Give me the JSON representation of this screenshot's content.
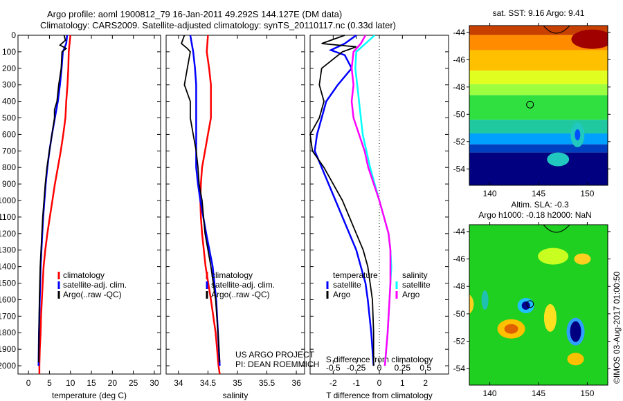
{
  "title_line1": "Argo profile: aoml 1900812_79 16-Jan-2011 49.292S 144.127E (DM data)",
  "title_line2": "Climatology: CARS2009. Satellite-adjusted climatology: synTS_20110117.nc (0.33d later)",
  "credit": "US ARGO PROJECT",
  "pi": "PI: DEAN ROEMMICH",
  "timestamp": "©IMOS 03-Aug-2017 01:00:50",
  "colors": {
    "climatology": "#ff0000",
    "satellite": "#0000ff",
    "argo": "#000000",
    "sal_satellite": "#00ffff",
    "sal_argo": "#ff00ff"
  },
  "chart_data": [
    {
      "type": "line",
      "id": "temperature",
      "xlabel": "temperature (deg C)",
      "xlim": [
        -2.5,
        31.5
      ],
      "ylim": [
        2050,
        0
      ],
      "xticks": [
        0,
        5,
        10,
        15,
        20,
        25,
        30
      ],
      "xticklabels": [
        "0",
        "5",
        "10",
        "15",
        "20",
        "25",
        "30"
      ],
      "yticks": [
        0,
        100,
        200,
        300,
        400,
        500,
        600,
        700,
        800,
        900,
        1000,
        1100,
        1200,
        1300,
        1400,
        1500,
        1600,
        1700,
        1800,
        1900,
        2000
      ],
      "legend": [
        "climatology",
        "satellite-adj. clim.",
        "Argo(..raw -QC)"
      ],
      "series": [
        {
          "name": "climatology",
          "color": "#ff0000",
          "depth": [
            0,
            50,
            100,
            200,
            300,
            400,
            500,
            600,
            700,
            800,
            900,
            1000,
            1100,
            1200,
            1300,
            1400,
            1500,
            1600,
            1700,
            1800,
            1900,
            2000,
            2050
          ],
          "values": [
            10,
            9.8,
            9.6,
            9.5,
            9.3,
            9.0,
            8.8,
            8.3,
            7.7,
            7.0,
            6.3,
            5.7,
            5.1,
            4.5,
            4.0,
            3.6,
            3.4,
            3.2,
            3.0,
            2.9,
            2.7,
            2.6,
            2.6
          ]
        },
        {
          "name": "satellite-adj. clim.",
          "color": "#0000ff",
          "depth": [
            0,
            50,
            100,
            200,
            300,
            400,
            500,
            600,
            700,
            800,
            900,
            1000,
            1100,
            1200,
            1300,
            1400,
            1600,
            1800,
            2000
          ],
          "values": [
            9.2,
            9.0,
            8.2,
            7.9,
            7.5,
            7.0,
            6.3,
            5.6,
            5.0,
            4.5,
            4.1,
            3.8,
            3.5,
            3.3,
            3.1,
            2.9,
            2.7,
            2.5,
            2.4
          ]
        },
        {
          "name": "Argo(..raw -QC)",
          "color": "#000000",
          "depth": [
            0,
            30,
            60,
            80,
            100,
            200,
            300,
            400,
            450,
            500,
            600,
            700,
            800,
            900,
            1000,
            1100,
            1200,
            1300,
            1400,
            1600,
            1800,
            1980
          ],
          "values": [
            8.5,
            8.8,
            7.5,
            9.0,
            8.0,
            7.8,
            7.2,
            6.8,
            6.2,
            6.2,
            5.6,
            5.0,
            4.4,
            4.0,
            3.7,
            3.4,
            3.2,
            3.0,
            2.8,
            2.6,
            2.5,
            2.4
          ]
        }
      ]
    },
    {
      "type": "line",
      "id": "salinity",
      "xlabel": "salinity",
      "xlim": [
        33.79,
        36.14
      ],
      "ylim": [
        2050,
        0
      ],
      "xticks": [
        34,
        34.5,
        35,
        35.5,
        36
      ],
      "xticklabels": [
        "34",
        "34.5",
        "35",
        "35.5",
        "36"
      ],
      "legend": [
        "climatology",
        "satellite-adj. clim.",
        "Argo(..raw -QC)"
      ],
      "series": [
        {
          "name": "climatology",
          "color": "#ff0000",
          "depth": [
            0,
            100,
            200,
            300,
            400,
            500,
            600,
            700,
            800,
            900,
            1000,
            1100,
            1200,
            1400,
            1600,
            1800,
            2000,
            2050
          ],
          "values": [
            34.5,
            34.48,
            34.52,
            34.55,
            34.55,
            34.55,
            34.5,
            34.45,
            34.4,
            34.38,
            34.37,
            34.38,
            34.4,
            34.46,
            34.55,
            34.63,
            34.68,
            34.7
          ]
        },
        {
          "name": "satellite-adj. clim.",
          "color": "#0000ff",
          "depth": [
            0,
            100,
            200,
            300,
            400,
            500,
            600,
            700,
            800,
            900,
            1000,
            1200,
            1400,
            1600,
            1800,
            2000
          ],
          "values": [
            34.2,
            34.25,
            34.28,
            34.3,
            34.3,
            34.3,
            34.3,
            34.3,
            34.3,
            34.33,
            34.37,
            34.47,
            34.58,
            34.64,
            34.67,
            34.7
          ]
        },
        {
          "name": "Argo(..raw -QC)",
          "color": "#000000",
          "depth": [
            0,
            50,
            80,
            100,
            200,
            300,
            400,
            500,
            600,
            700,
            800,
            900,
            1000,
            1200,
            1400,
            1600,
            1800,
            1980
          ],
          "values": [
            34.1,
            34.05,
            34.15,
            34.2,
            34.15,
            34.1,
            34.2,
            34.2,
            34.25,
            34.3,
            34.33,
            34.35,
            34.4,
            34.45,
            34.55,
            34.63,
            34.67,
            34.7
          ]
        }
      ]
    },
    {
      "type": "line",
      "id": "difference",
      "xlabel": "T difference from climatology",
      "x2label": "S difference from climatology",
      "xlim": [
        -3,
        3
      ],
      "ylim": [
        2050,
        0
      ],
      "xticks": [
        -2,
        -1,
        0,
        1,
        2
      ],
      "xticklabels": [
        "-2",
        "-1",
        "0",
        "1",
        "2"
      ],
      "x2ticks": [
        -0.5,
        -0.25,
        0,
        0.25,
        0.5
      ],
      "x2ticklabels": [
        "-0.5",
        "-0.25",
        "0",
        "0.25",
        "0.5"
      ],
      "legend_t": {
        "title": "temperature",
        "items": [
          "satellite",
          "Argo"
        ]
      },
      "legend_s": {
        "title": "salinity",
        "items": [
          "satellite",
          "Argo"
        ]
      },
      "series": [
        {
          "name": "T satellite",
          "var": "T",
          "color": "#0000ff",
          "depth": [
            0,
            50,
            90,
            120,
            200,
            300,
            400,
            500,
            600,
            700,
            800,
            900,
            1000,
            1100,
            1200,
            1300,
            1400,
            1500,
            1600,
            1800,
            2000
          ],
          "values": [
            -1.0,
            -1.5,
            -2.1,
            -1.5,
            -1.2,
            -1.8,
            -2.3,
            -2.5,
            -2.7,
            -2.8,
            -2.5,
            -2.2,
            -1.9,
            -1.6,
            -1.3,
            -1.0,
            -0.8,
            -0.6,
            -0.5,
            -0.35,
            -0.25
          ]
        },
        {
          "name": "T Argo",
          "var": "T",
          "color": "#000000",
          "depth": [
            0,
            50,
            70,
            100,
            200,
            300,
            400,
            500,
            600,
            700,
            800,
            900,
            1000,
            1100,
            1200,
            1300,
            1400,
            1600,
            1800,
            2000
          ],
          "values": [
            -1.5,
            -2.5,
            -1.0,
            -1.6,
            -2.5,
            -2.6,
            -2.4,
            -2.6,
            -3.0,
            -2.9,
            -2.4,
            -2.0,
            -1.6,
            -1.3,
            -1.0,
            -0.7,
            -0.5,
            -0.3,
            -0.25,
            -0.25
          ]
        },
        {
          "name": "S satellite",
          "var": "S",
          "color": "#00ffff",
          "depth": [
            0,
            50,
            100,
            200,
            300,
            400,
            500,
            600,
            700,
            800,
            900,
            1000,
            1100,
            1200,
            1300,
            1400,
            1500,
            1600,
            1800,
            2000
          ],
          "values": [
            -0.05,
            -0.15,
            -0.25,
            -0.26,
            -0.24,
            -0.22,
            -0.2,
            -0.18,
            -0.14,
            -0.1,
            -0.05,
            0,
            0.05,
            0.1,
            0.12,
            0.13,
            0.12,
            0.11,
            0.09,
            0.06
          ]
        },
        {
          "name": "S Argo",
          "var": "S",
          "color": "#ff00ff",
          "depth": [
            0,
            50,
            100,
            200,
            300,
            400,
            500,
            600,
            700,
            800,
            900,
            1000,
            1100,
            1200,
            1300,
            1400,
            1500,
            1600,
            1800,
            2000
          ],
          "values": [
            -0.15,
            -0.2,
            -0.28,
            -0.3,
            -0.28,
            -0.3,
            -0.28,
            -0.22,
            -0.16,
            -0.12,
            -0.06,
            0,
            0.05,
            0.1,
            0.12,
            0.12,
            0.12,
            0.11,
            0.09,
            0.06
          ]
        }
      ]
    },
    {
      "type": "heatmap",
      "id": "sst_map",
      "title": "sat. SST: 9.16 Argo: 9.41",
      "xlim": [
        137.9,
        152.1
      ],
      "ylim": [
        -55.2,
        -43.5
      ],
      "xticks": [
        140,
        145,
        150
      ],
      "xticklabels": [
        "140",
        "145",
        "150"
      ],
      "yticks": [
        -44,
        -46,
        -48,
        -50,
        -52,
        -54
      ],
      "yticklabels": [
        "-44",
        "-46",
        "-48",
        "-50",
        "-52",
        "-54"
      ],
      "argo_position": [
        144.127,
        -49.292
      ]
    },
    {
      "type": "heatmap",
      "id": "sla_map",
      "title": "Altim. SLA: -0.3",
      "subtitle": "Argo h1000: -0.18 h2000: NaN",
      "xlim": [
        137.9,
        152.1
      ],
      "ylim": [
        -55.2,
        -43.5
      ],
      "xticks": [
        140,
        145,
        150
      ],
      "xticklabels": [
        "140",
        "145",
        "150"
      ],
      "yticks": [
        -44,
        -46,
        -48,
        -50,
        -52,
        -54
      ],
      "yticklabels": [
        "-44",
        "-46",
        "-48",
        "-50",
        "-52",
        "-54"
      ],
      "argo_position": [
        144.127,
        -49.292
      ]
    }
  ]
}
